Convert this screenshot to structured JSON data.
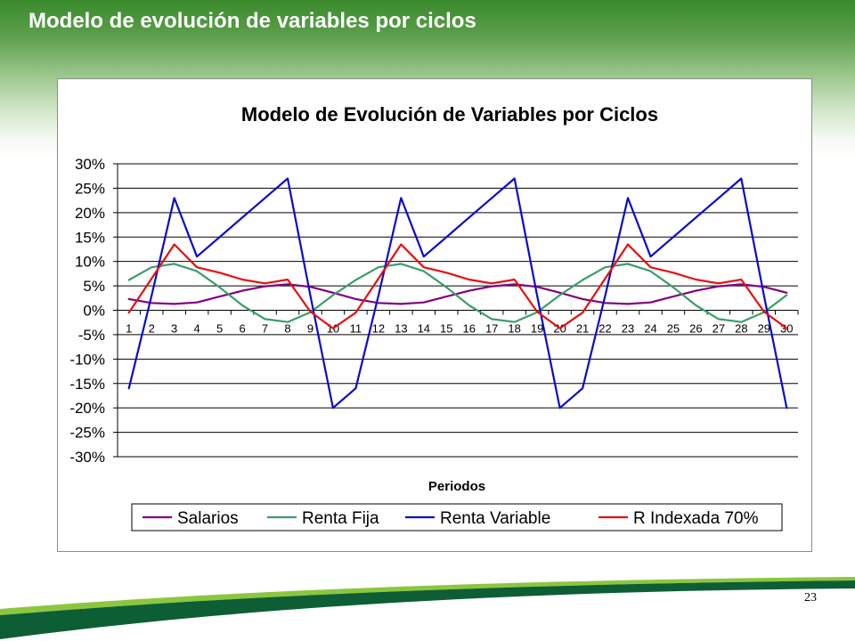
{
  "slide": {
    "title": "Modelo de evolución de variables por ciclos",
    "page_number": "23"
  },
  "colors": {
    "brand_green": "#3a8a2c",
    "swoosh_dark": "#0e5e35",
    "swoosh_light": "#8cc63f",
    "axis": "#000000",
    "chart_border": "#8c8c8c"
  },
  "chart_data": {
    "type": "line",
    "title": "Modelo de Evolución de Variables por Ciclos",
    "xlabel": "Periodos",
    "categories": [
      "1",
      "2",
      "3",
      "4",
      "5",
      "6",
      "7",
      "8",
      "9",
      "10",
      "11",
      "12",
      "13",
      "14",
      "15",
      "16",
      "17",
      "18",
      "19",
      "20",
      "21",
      "22",
      "23",
      "24",
      "25",
      "26",
      "27",
      "28",
      "29",
      "30"
    ],
    "yticks": [
      "30%",
      "25%",
      "20%",
      "15%",
      "10%",
      "5%",
      "0%",
      "-5%",
      "-10%",
      "-15%",
      "-20%",
      "-25%",
      "-30%"
    ],
    "ylim": [
      -30,
      30
    ],
    "grid": true,
    "legend": "bottom",
    "series": [
      {
        "name": "Salarios",
        "color": "#800080",
        "values": [
          2.3,
          1.5,
          1.3,
          1.6,
          2.8,
          4.0,
          4.9,
          5.3,
          4.8,
          3.6,
          2.3,
          1.5,
          1.3,
          1.6,
          2.8,
          4.0,
          4.9,
          5.3,
          4.8,
          3.6,
          2.3,
          1.5,
          1.3,
          1.6,
          2.8,
          4.0,
          4.9,
          5.3,
          4.8,
          3.6
        ]
      },
      {
        "name": "Renta Fija",
        "color": "#3c9c6c",
        "values": [
          6.2,
          8.8,
          9.5,
          8.0,
          4.7,
          1.0,
          -1.8,
          -2.4,
          -0.4,
          3.1,
          6.2,
          8.8,
          9.5,
          8.0,
          4.7,
          1.0,
          -1.8,
          -2.4,
          -0.4,
          3.1,
          6.2,
          8.8,
          9.5,
          8.0,
          4.7,
          1.0,
          -1.8,
          -2.4,
          -0.4,
          3.1
        ]
      },
      {
        "name": "Renta Variable",
        "color": "#0a0acc",
        "values": [
          -16,
          3,
          23,
          11,
          15,
          19,
          23,
          27,
          3,
          -20,
          -16,
          3,
          23,
          11,
          15,
          19,
          23,
          27,
          3,
          -20,
          -16,
          3,
          23,
          11,
          15,
          19,
          23,
          27,
          3,
          -20
        ]
      },
      {
        "name": "R Indexada 70%",
        "color": "#e80e0e",
        "values": [
          -0.5,
          6.5,
          13.5,
          8.8,
          7.7,
          6.3,
          5.5,
          6.3,
          -0.3,
          -3.7,
          -0.5,
          6.5,
          13.5,
          8.8,
          7.7,
          6.3,
          5.5,
          6.3,
          -0.3,
          -3.7,
          -0.5,
          6.5,
          13.5,
          8.8,
          7.7,
          6.3,
          5.5,
          6.3,
          -0.3,
          -3.7
        ]
      }
    ]
  }
}
